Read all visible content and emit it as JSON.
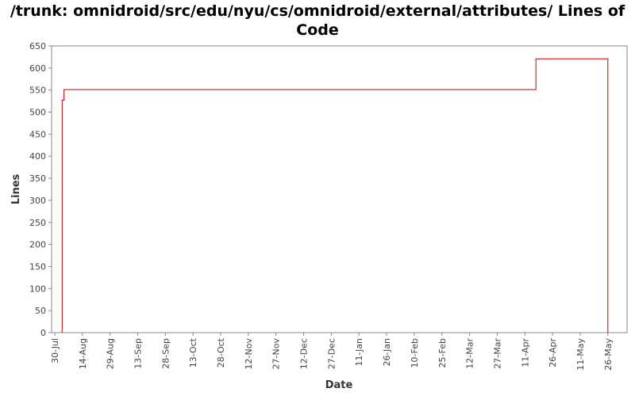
{
  "title_line1": "/trunk: omnidroid/src/edu/nyu/cs/omnidroid/external/attributes/ Lines of",
  "title_line2": "Code",
  "chart_data": {
    "type": "line",
    "style": "step",
    "title": "/trunk: omnidroid/src/edu/nyu/cs/omnidroid/external/attributes/ Lines of Code",
    "xlabel": "Date",
    "ylabel": "Lines",
    "ylim": [
      0,
      650
    ],
    "yticks": [
      0,
      50,
      100,
      150,
      200,
      250,
      300,
      350,
      400,
      450,
      500,
      550,
      600,
      650
    ],
    "xticks": [
      "30-Jul",
      "14-Aug",
      "29-Aug",
      "13-Sep",
      "28-Sep",
      "13-Oct",
      "28-Oct",
      "12-Nov",
      "27-Nov",
      "12-Dec",
      "27-Dec",
      "11-Jan",
      "26-Jan",
      "10-Feb",
      "25-Feb",
      "12-Mar",
      "27-Mar",
      "11-Apr",
      "26-Apr",
      "11-May",
      "26-May"
    ],
    "grid": false,
    "series": [
      {
        "color": "#cc0000",
        "points": [
          {
            "x": "2008-08-03",
            "y": 0
          },
          {
            "x": "2008-08-03",
            "y": 527
          },
          {
            "x": "2008-08-04",
            "y": 527
          },
          {
            "x": "2008-08-04",
            "y": 551
          },
          {
            "x": "2009-04-17",
            "y": 551
          },
          {
            "x": "2009-04-17",
            "y": 621
          },
          {
            "x": "2009-05-26",
            "y": 621
          },
          {
            "x": "2009-05-26",
            "y": 0
          }
        ]
      }
    ]
  }
}
